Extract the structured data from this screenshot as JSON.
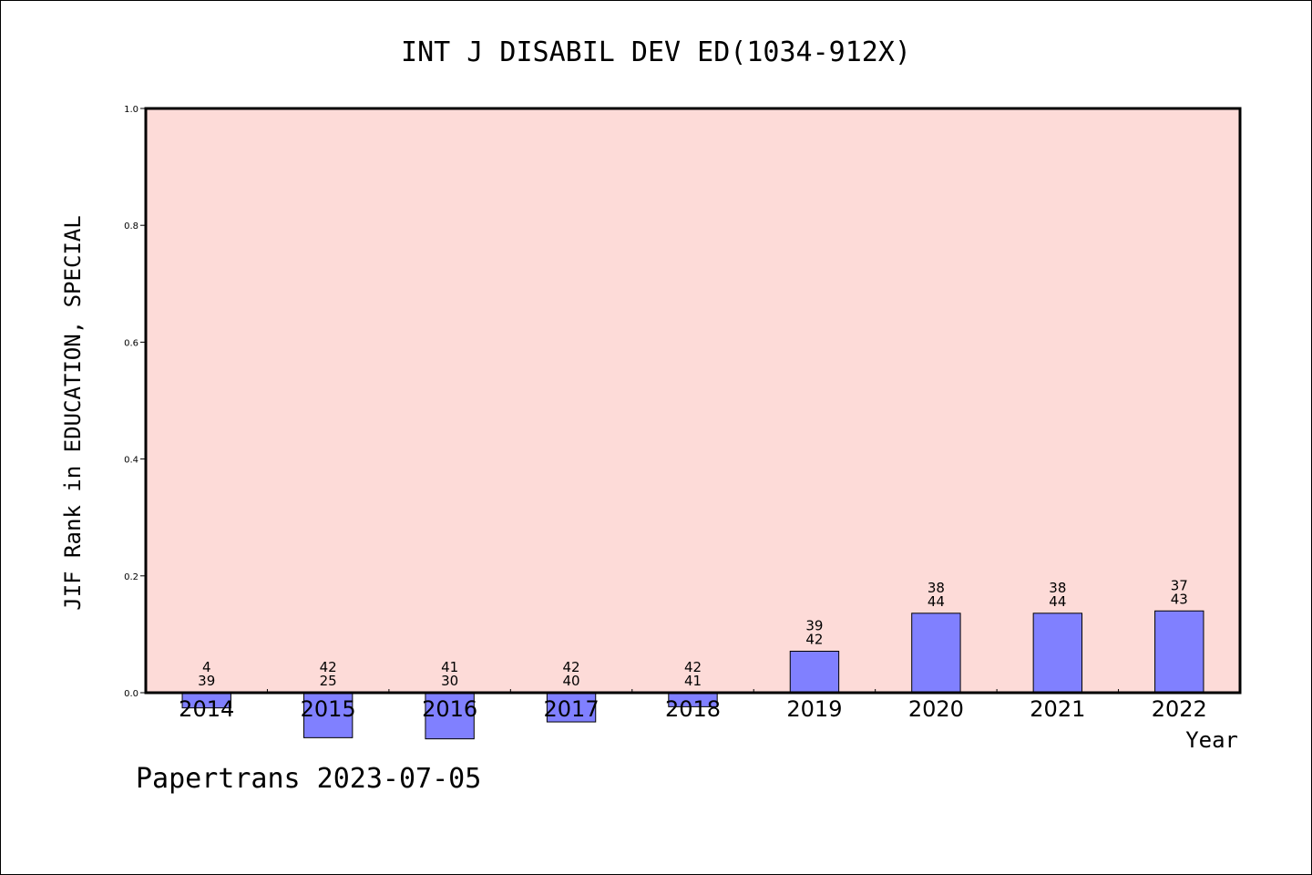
{
  "chart_data": {
    "type": "bar",
    "title": "INT J DISABIL DEV ED(1034-912X)",
    "xlabel": "Year",
    "ylabel": "JIF Rank in EDUCATION, SPECIAL",
    "ylim": [
      0,
      1
    ],
    "yticks": [
      "0.0",
      "0.2",
      "0.4",
      "0.6",
      "0.8",
      "1.0"
    ],
    "grid": false,
    "categories": [
      "2014",
      "2015",
      "2016",
      "2017",
      "2018",
      "2019",
      "2020",
      "2021",
      "2022"
    ],
    "values": [
      -0.026,
      -0.077,
      -0.079,
      -0.05,
      -0.024,
      0.071,
      0.136,
      0.136,
      0.14
    ],
    "rank_labels": [
      {
        "rank": "4",
        "total": "39"
      },
      {
        "rank": "42",
        "total": "25"
      },
      {
        "rank": "41",
        "total": "30"
      },
      {
        "rank": "42",
        "total": "40"
      },
      {
        "rank": "42",
        "total": "41"
      },
      {
        "rank": "39",
        "total": "42"
      },
      {
        "rank": "38",
        "total": "44"
      },
      {
        "rank": "38",
        "total": "44"
      },
      {
        "rank": "37",
        "total": "43"
      }
    ],
    "colors": {
      "plot_background": "#fddbd8",
      "bar_fill": "#8080ff",
      "bar_edge": "#000000"
    }
  },
  "footer": "Papertrans 2023-07-05"
}
